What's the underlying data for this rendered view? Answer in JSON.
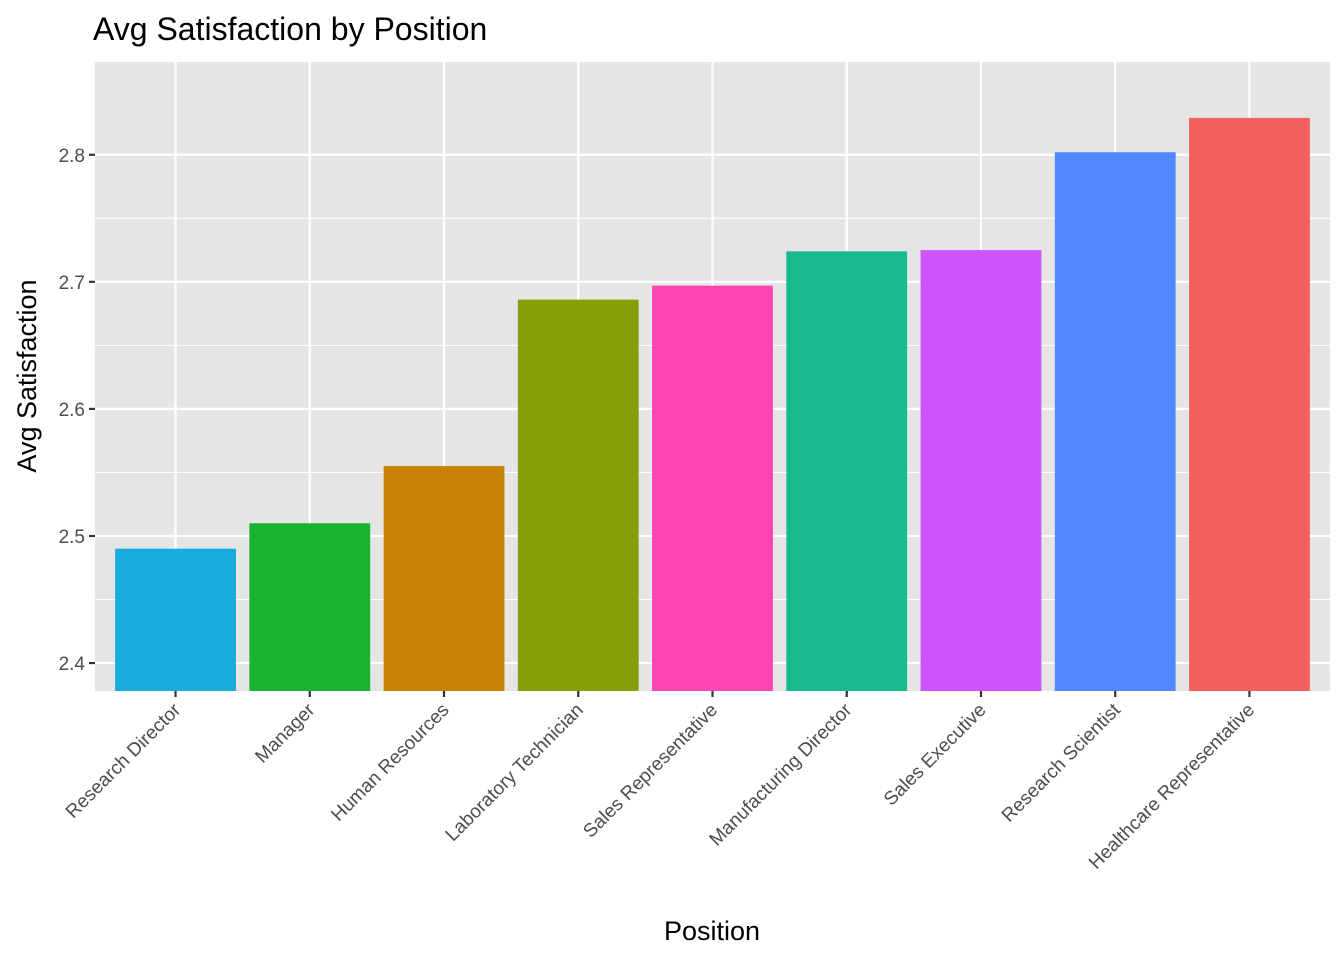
{
  "chart_data": {
    "type": "bar",
    "title": "Avg Satisfaction by Position",
    "xlabel": "Position",
    "ylabel": "Avg Satisfaction",
    "categories": [
      "Research Director",
      "Manager",
      "Human Resources",
      "Laboratory Technician",
      "Sales Representative",
      "Manufacturing Director",
      "Sales Executive",
      "Research Scientist",
      "Healthcare Representative"
    ],
    "values": [
      2.49,
      2.51,
      2.555,
      2.686,
      2.697,
      2.724,
      2.725,
      2.802,
      2.829
    ],
    "colors": [
      "#17ABDE",
      "#19B32D",
      "#C88106",
      "#869E06",
      "#FF45B4",
      "#19B98E",
      "#D054FB",
      "#5286FF",
      "#F2615E"
    ],
    "ylim": [
      2.378,
      2.873
    ],
    "yticks": [
      2.4,
      2.5,
      2.6,
      2.7,
      2.8
    ],
    "ytick_labels": [
      "2.4",
      "2.5",
      "2.6",
      "2.7",
      "2.8"
    ],
    "grid": true,
    "panel_color": "#E5E5E5",
    "grid_color": "#FFFFFF"
  }
}
